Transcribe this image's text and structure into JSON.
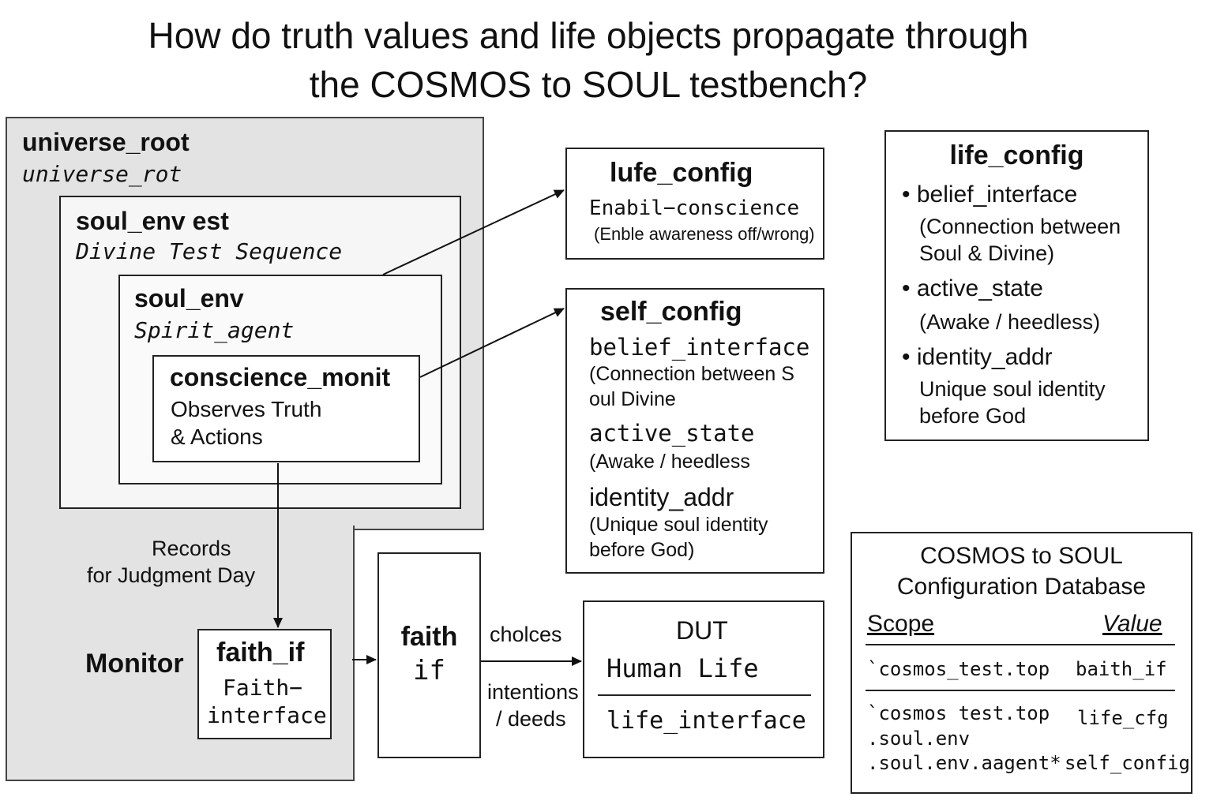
{
  "title": {
    "line1": "How do truth values and life objects propagate through",
    "line2": "the COSMOS to SOUL testbench?"
  },
  "universe_root": {
    "name": "universe_root",
    "instance": "universe_rot"
  },
  "soul_env_test": {
    "name": "soul_env est",
    "instance": "Divine Test Sequence"
  },
  "soul_env": {
    "name": "soul_env",
    "instance": "Spirit_agent"
  },
  "conscience_monitor": {
    "name": "conscience_monit",
    "line1": "Observes Truth",
    "line2": "& Actions"
  },
  "records_label": {
    "line1": "Records",
    "line2": "for Judgment Day"
  },
  "monitor_label": "Monitor",
  "faith_if_box": {
    "name": "faith_if",
    "line1": "Faith−",
    "line2": "interface"
  },
  "faith_if_driver": {
    "line1": "faith",
    "line2": "if"
  },
  "flow_labels": {
    "choices": "cholces",
    "intentions": "intentions",
    "deeds": "/ deeds"
  },
  "dut": {
    "title": "DUT",
    "subtitle": "Human Life",
    "interface": "life_interface"
  },
  "lufe_config": {
    "title": "lufe_config",
    "line1": "Enabil−conscience",
    "line2": "(Enble awareness off/wrong)"
  },
  "self_config": {
    "title": "self_config",
    "field1": "belief_interface",
    "field1_desc_1": "(Connection between S",
    "field1_desc_2": "oul Divine",
    "field2": "active_state",
    "field2_desc": "(Awake / heedless",
    "field3": "identity_addr",
    "field3_desc_1": "(Unique soul identity",
    "field3_desc_2": "before God)"
  },
  "life_config": {
    "title": "life_config",
    "items": [
      {
        "name": "belief_interface",
        "desc_1": "(Connection between",
        "desc_2": "Soul & Divine)"
      },
      {
        "name": "active_state",
        "desc_1": "(Awake / heedless)"
      },
      {
        "name": "identity_addr",
        "desc_1": "Unique soul identity",
        "desc_2": "before God"
      }
    ]
  },
  "config_db": {
    "title_1": "COSMOS to SOUL",
    "title_2": "Configuration Database",
    "header_scope": "Scope",
    "header_value": "Value",
    "rows": [
      {
        "scope": "`cosmos_test.top",
        "value": "baith_if"
      },
      {
        "scope_1": "`cosmos test.top",
        "scope_2": ".soul.env",
        "scope_3": ".soul.env.aagent*",
        "value_1": "life_cfg",
        "value_2": "self_config"
      }
    ]
  }
}
